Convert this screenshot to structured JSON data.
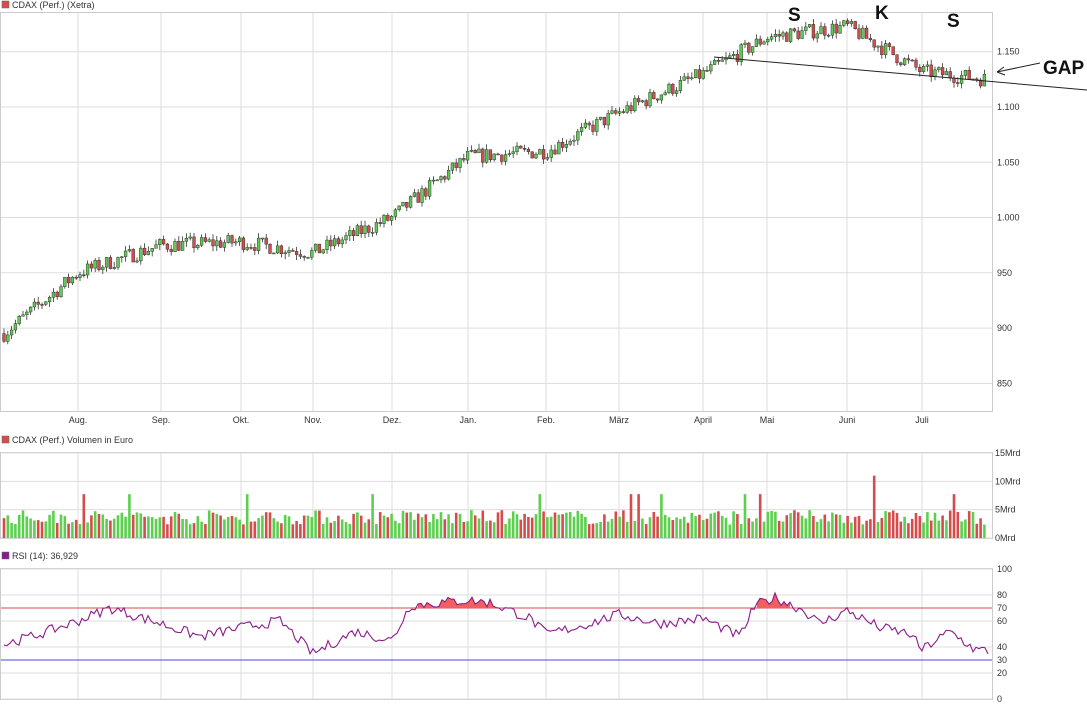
{
  "colors": {
    "up": "#5ccf4f",
    "down": "#d64c4c",
    "grid": "#dddddd",
    "rsi_line": "#8a1c8a",
    "rsi_upper": "#d64c4c",
    "rsi_lower": "#4a4ae0",
    "rsi_fill": "#f06060",
    "annotation_line": "#222222"
  },
  "chart_data": [
    {
      "type": "candlestick",
      "title": "CDAX (Perf.) (Xetra)",
      "x_labels": [
        "Aug.",
        "Sep.",
        "Okt.",
        "Nov.",
        "Dez.",
        "Jan.",
        "Feb.",
        "März",
        "April",
        "Mai",
        "Juni",
        "Juli"
      ],
      "y_ticks": [
        "850",
        "900",
        "950",
        "1.000",
        "1.050",
        "1.100",
        "1.150"
      ],
      "ylim": [
        825,
        1185
      ],
      "grid": true,
      "monthly_close": [
        950,
        975,
        978,
        968,
        1000,
        1055,
        1060,
        1095,
        1130,
        1163,
        1173,
        1132
      ],
      "trendline": {
        "from": 1155,
        "to": 1116
      },
      "annotations": [
        "S",
        "K",
        "S",
        "GAP"
      ]
    },
    {
      "type": "bar",
      "title": "CDAX (Perf.) Volumen in Euro",
      "y_ticks": [
        "15Mrd",
        "10Mrd",
        "5Mrd",
        "0Mrd"
      ],
      "ylim": [
        0,
        15
      ],
      "typical_value": 4.3,
      "max_value": 11
    },
    {
      "type": "line",
      "title": "RSI (14): 36,929",
      "y_ticks": [
        "100",
        "80",
        "70",
        "60",
        "40",
        "30",
        "20",
        "0"
      ],
      "ylim": [
        0,
        100
      ],
      "upper_band": 70,
      "lower_band": 30,
      "last_value": 36.929
    }
  ]
}
